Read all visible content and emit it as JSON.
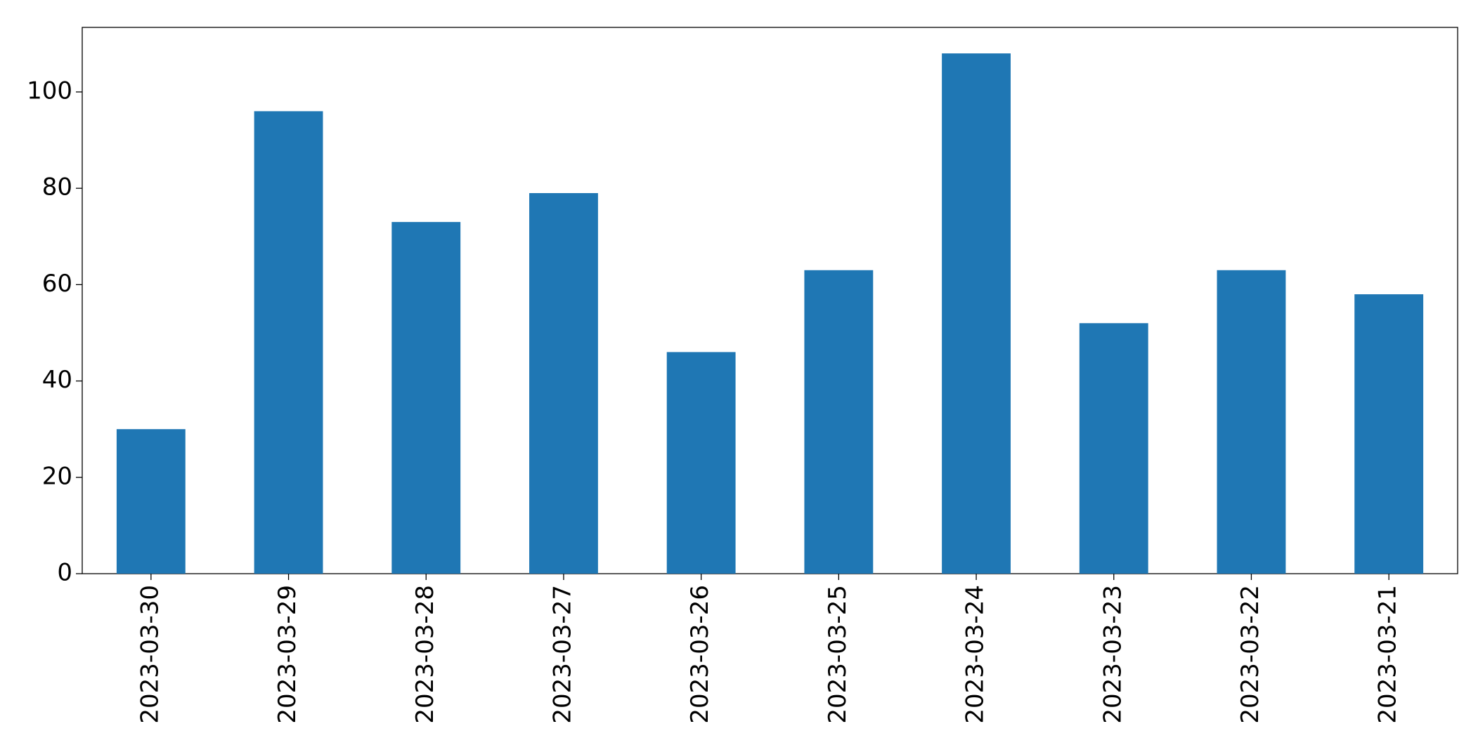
{
  "chart_data": {
    "type": "bar",
    "categories": [
      "2023-03-30",
      "2023-03-29",
      "2023-03-28",
      "2023-03-27",
      "2023-03-26",
      "2023-03-25",
      "2023-03-24",
      "2023-03-23",
      "2023-03-22",
      "2023-03-21"
    ],
    "values": [
      30,
      96,
      73,
      79,
      46,
      63,
      108,
      52,
      63,
      58
    ],
    "color": "#1f77b4",
    "ylim": [
      0,
      113.4
    ],
    "yticks": [
      0,
      20,
      40,
      60,
      80,
      100
    ],
    "grid": false
  }
}
